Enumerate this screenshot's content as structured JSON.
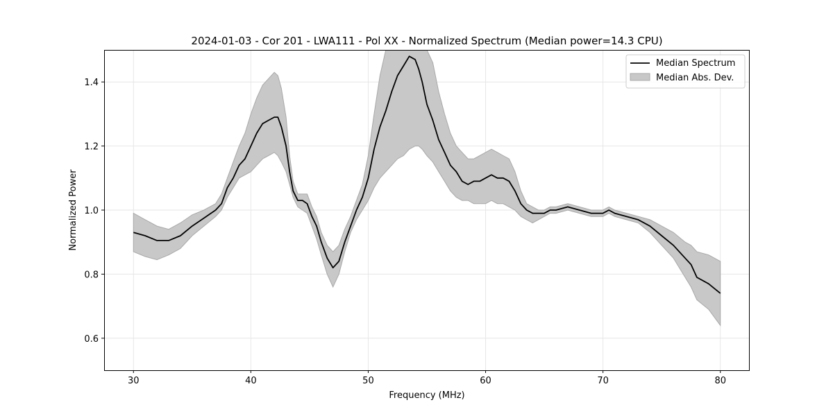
{
  "chart_data": {
    "type": "line",
    "title": "2024-01-03 - Cor 201 - LWA111 - Pol XX - Normalized Spectrum (Median power=14.3 CPU)",
    "xlabel": "Frequency (MHz)",
    "ylabel": "Normalized Power",
    "xlim": [
      27.5,
      82.5
    ],
    "ylim": [
      0.5,
      1.5
    ],
    "xticks": [
      30,
      40,
      50,
      60,
      70,
      80
    ],
    "yticks": [
      0.6,
      0.8,
      1.0,
      1.2,
      1.4
    ],
    "xtick_labels": [
      "30",
      "40",
      "50",
      "60",
      "70",
      "80"
    ],
    "ytick_labels": [
      "0.6",
      "0.8",
      "1.0",
      "1.2",
      "1.4"
    ],
    "grid": true,
    "legend_position": "top-right",
    "colors": {
      "line": "#000000",
      "band_fill": "#c8c8c8",
      "band_edge": "#a8a8a8",
      "grid": "#e6e6e6"
    },
    "series": [
      {
        "name": "Median Spectrum",
        "style": "line",
        "x": [
          30,
          31,
          32,
          33,
          34,
          35,
          36,
          37,
          37.5,
          38,
          38.5,
          39,
          39.5,
          40,
          40.5,
          41,
          41.5,
          42,
          42.3,
          42.6,
          43,
          43.3,
          43.6,
          44,
          44.4,
          44.8,
          45.2,
          45.6,
          46,
          46.5,
          47,
          47.5,
          48,
          48.5,
          49,
          49.5,
          50,
          50.5,
          51,
          51.5,
          52,
          52.5,
          53,
          53.5,
          54,
          54.3,
          54.6,
          55,
          55.5,
          56,
          56.5,
          57,
          57.5,
          58,
          58.5,
          59,
          59.5,
          60,
          60.5,
          61,
          61.5,
          62,
          62.5,
          63,
          63.5,
          64,
          64.5,
          65,
          65.5,
          66,
          67,
          68,
          69,
          70,
          70.5,
          71,
          72,
          73,
          74,
          75,
          76,
          77,
          77.5,
          78,
          79,
          80
        ],
        "y": [
          0.93,
          0.92,
          0.905,
          0.905,
          0.92,
          0.95,
          0.975,
          1.0,
          1.02,
          1.07,
          1.1,
          1.14,
          1.16,
          1.2,
          1.24,
          1.27,
          1.28,
          1.29,
          1.29,
          1.26,
          1.2,
          1.12,
          1.06,
          1.03,
          1.03,
          1.02,
          0.98,
          0.95,
          0.9,
          0.85,
          0.82,
          0.84,
          0.9,
          0.95,
          1.0,
          1.04,
          1.1,
          1.19,
          1.26,
          1.31,
          1.37,
          1.42,
          1.45,
          1.48,
          1.47,
          1.44,
          1.4,
          1.33,
          1.28,
          1.22,
          1.18,
          1.14,
          1.12,
          1.09,
          1.08,
          1.09,
          1.09,
          1.1,
          1.11,
          1.1,
          1.1,
          1.09,
          1.06,
          1.02,
          1.0,
          0.99,
          0.99,
          0.99,
          1.0,
          1.0,
          1.01,
          1.0,
          0.99,
          0.99,
          1.0,
          0.99,
          0.98,
          0.97,
          0.95,
          0.92,
          0.89,
          0.85,
          0.83,
          0.79,
          0.77,
          0.74
        ]
      },
      {
        "name": "Median Abs. Dev.",
        "style": "band",
        "x": [
          30,
          31,
          32,
          33,
          34,
          35,
          36,
          37,
          37.5,
          38,
          38.5,
          39,
          39.5,
          40,
          40.5,
          41,
          41.5,
          42,
          42.3,
          42.6,
          43,
          43.3,
          43.6,
          44,
          44.4,
          44.8,
          45.2,
          45.6,
          46,
          46.5,
          47,
          47.5,
          48,
          48.5,
          49,
          49.5,
          50,
          50.5,
          51,
          51.5,
          52,
          52.5,
          53,
          53.5,
          54,
          54.3,
          54.6,
          55,
          55.5,
          56,
          56.5,
          57,
          57.5,
          58,
          58.5,
          59,
          59.5,
          60,
          60.5,
          61,
          61.5,
          62,
          62.5,
          63,
          63.5,
          64,
          64.5,
          65,
          65.5,
          66,
          67,
          68,
          69,
          70,
          70.5,
          71,
          72,
          73,
          74,
          75,
          76,
          77,
          77.5,
          78,
          79,
          80
        ],
        "lower": [
          0.87,
          0.855,
          0.845,
          0.86,
          0.88,
          0.92,
          0.95,
          0.98,
          1.0,
          1.04,
          1.07,
          1.1,
          1.11,
          1.12,
          1.14,
          1.16,
          1.17,
          1.18,
          1.17,
          1.15,
          1.12,
          1.08,
          1.04,
          1.01,
          1.0,
          0.99,
          0.95,
          0.91,
          0.86,
          0.8,
          0.76,
          0.8,
          0.87,
          0.93,
          0.97,
          1.0,
          1.03,
          1.07,
          1.1,
          1.12,
          1.14,
          1.16,
          1.17,
          1.19,
          1.2,
          1.2,
          1.19,
          1.17,
          1.15,
          1.12,
          1.09,
          1.06,
          1.04,
          1.03,
          1.03,
          1.02,
          1.02,
          1.02,
          1.03,
          1.02,
          1.02,
          1.01,
          1.0,
          0.98,
          0.97,
          0.96,
          0.97,
          0.98,
          0.99,
          0.99,
          1.0,
          0.99,
          0.98,
          0.98,
          0.99,
          0.98,
          0.97,
          0.96,
          0.93,
          0.89,
          0.85,
          0.79,
          0.76,
          0.72,
          0.69,
          0.64
        ],
        "upper": [
          0.99,
          0.97,
          0.95,
          0.94,
          0.96,
          0.985,
          1.0,
          1.02,
          1.05,
          1.1,
          1.15,
          1.2,
          1.24,
          1.3,
          1.35,
          1.39,
          1.41,
          1.43,
          1.42,
          1.38,
          1.29,
          1.17,
          1.09,
          1.05,
          1.05,
          1.05,
          1.01,
          0.98,
          0.93,
          0.89,
          0.87,
          0.89,
          0.94,
          0.98,
          1.03,
          1.08,
          1.17,
          1.3,
          1.42,
          1.5,
          1.5,
          1.5,
          1.5,
          1.5,
          1.5,
          1.5,
          1.5,
          1.5,
          1.46,
          1.37,
          1.3,
          1.24,
          1.2,
          1.18,
          1.16,
          1.16,
          1.17,
          1.18,
          1.19,
          1.18,
          1.17,
          1.16,
          1.12,
          1.06,
          1.02,
          1.01,
          1.0,
          1.0,
          1.01,
          1.01,
          1.02,
          1.01,
          1.0,
          1.0,
          1.01,
          1.0,
          0.99,
          0.98,
          0.97,
          0.95,
          0.93,
          0.9,
          0.89,
          0.87,
          0.86,
          0.84
        ]
      }
    ]
  }
}
